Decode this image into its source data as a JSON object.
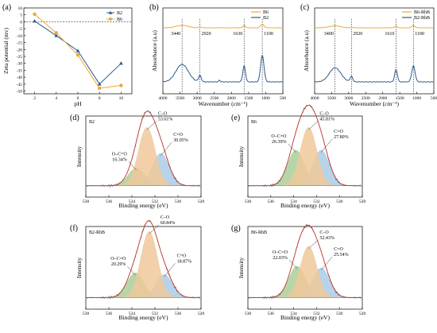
{
  "colors": {
    "b2": "#2c5a8c",
    "b6": "#f0a830",
    "orange_fill": "#f0c89a",
    "green_fill": "#a8cf9a",
    "blue_fill": "#a8cde8",
    "envelope": "#c0392b",
    "raw": "#555555"
  },
  "chart_data": [
    {
      "panel": "(a)",
      "type": "line",
      "xlabel": "pH",
      "ylabel": "Zeta potential (mv)",
      "xlim": [
        1,
        11
      ],
      "ylim": [
        -52,
        10
      ],
      "xticks": [
        2,
        4,
        6,
        8,
        10
      ],
      "yticks": [
        10,
        5,
        0,
        -5,
        -10,
        -15,
        -20,
        -25,
        -30,
        -35,
        -40,
        -45,
        -50
      ],
      "x": [
        2,
        4,
        6,
        8,
        10
      ],
      "reference_line": 0,
      "series": [
        {
          "name": "B2",
          "values": [
            0.5,
            -10,
            -21,
            -45,
            -30
          ],
          "color": "#2c5a8c",
          "marker": "triangle"
        },
        {
          "name": "B6",
          "values": [
            5.5,
            -8,
            -24,
            -48,
            -46
          ],
          "color": "#f0a830",
          "marker": "circle"
        }
      ]
    },
    {
      "panel": "(b)",
      "type": "line",
      "xlabel": "Wavenumber (cm⁻¹)",
      "ylabel": "Absorbance (a.u)",
      "xlim": [
        4000,
        500
      ],
      "xticks": [
        4000,
        3500,
        3000,
        2500,
        2000,
        1500,
        1000,
        500
      ],
      "peaks": [
        {
          "x": 3440,
          "label": "3440"
        },
        {
          "x": 2920,
          "label": "2920"
        },
        {
          "x": 1630,
          "label": "1630"
        },
        {
          "x": 1100,
          "label": "1100"
        }
      ],
      "series": [
        {
          "name": "B6",
          "color": "#f0a830"
        },
        {
          "name": "B2",
          "color": "#2c5a8c"
        }
      ]
    },
    {
      "panel": "(c)",
      "type": "line",
      "xlabel": "Wavenumber (cm⁻¹)",
      "ylabel": "Absorbance (a.u)",
      "xlim": [
        4000,
        500
      ],
      "xticks": [
        4000,
        3500,
        3000,
        2500,
        2000,
        1500,
        1000,
        500
      ],
      "peaks": [
        {
          "x": 3400,
          "label": "3400"
        },
        {
          "x": 2920,
          "label": "2920"
        },
        {
          "x": 1610,
          "label": "1610"
        },
        {
          "x": 1100,
          "label": "1100"
        }
      ],
      "series": [
        {
          "name": "B6-RhB",
          "color": "#f0a830"
        },
        {
          "name": "B2-RhB",
          "color": "#2c5a8c"
        }
      ]
    },
    {
      "panel": "(d)",
      "sample": "B2",
      "type": "area",
      "xlabel": "Binding energy (eV)",
      "ylabel": "Intensity",
      "xlim": [
        538,
        528
      ],
      "xticks": [
        538,
        536,
        534,
        532,
        530,
        528
      ],
      "components": [
        {
          "name": "O–C=O",
          "percent": "16.34%",
          "center": 533.6,
          "height": 0.22,
          "fill": "green"
        },
        {
          "name": "C–O",
          "percent": "53.61%",
          "center": 532.7,
          "height": 0.72,
          "fill": "orange"
        },
        {
          "name": "C=O",
          "percent": "30.05%",
          "center": 531.5,
          "height": 0.4,
          "fill": "blue"
        }
      ]
    },
    {
      "panel": "(e)",
      "sample": "B6",
      "type": "area",
      "xlabel": "Binding energy (eV)",
      "ylabel": "Intensity",
      "xlim": [
        538,
        528
      ],
      "xticks": [
        538,
        536,
        534,
        532,
        530,
        528
      ],
      "components": [
        {
          "name": "O–C=O",
          "percent": "26.39%",
          "center": 533.8,
          "height": 0.44,
          "fill": "green"
        },
        {
          "name": "C–O",
          "percent": "45.81%",
          "center": 532.7,
          "height": 0.72,
          "fill": "orange"
        },
        {
          "name": "C=O",
          "percent": "27.80%",
          "center": 531.6,
          "height": 0.44,
          "fill": "blue"
        }
      ]
    },
    {
      "panel": "(f)",
      "sample": "B2-RhB",
      "type": "area",
      "xlabel": "Binding energy (eV)",
      "ylabel": "Intensity",
      "xlim": [
        538,
        528
      ],
      "xticks": [
        538,
        536,
        534,
        532,
        530,
        528
      ],
      "components": [
        {
          "name": "O–C=O",
          "percent": "20.29%",
          "center": 533.7,
          "height": 0.3,
          "fill": "green"
        },
        {
          "name": "C–O",
          "percent": "60.84%",
          "center": 532.5,
          "height": 0.8,
          "fill": "orange"
        },
        {
          "name": "C=O",
          "percent": "18.87%",
          "center": 531.2,
          "height": 0.28,
          "fill": "blue"
        }
      ]
    },
    {
      "panel": "(g)",
      "sample": "B6-RhB",
      "type": "area",
      "xlabel": "Binding energy (eV)",
      "ylabel": "Intensity",
      "xlim": [
        538,
        528
      ],
      "xticks": [
        538,
        536,
        534,
        532,
        530,
        528
      ],
      "components": [
        {
          "name": "O–C=O",
          "percent": "22.03%",
          "center": 533.7,
          "height": 0.38,
          "fill": "green"
        },
        {
          "name": "C–O",
          "percent": "52.43%",
          "center": 532.7,
          "height": 0.62,
          "fill": "orange"
        },
        {
          "name": "C=O",
          "percent": "25.54%",
          "center": 531.6,
          "height": 0.36,
          "fill": "blue"
        }
      ]
    }
  ]
}
